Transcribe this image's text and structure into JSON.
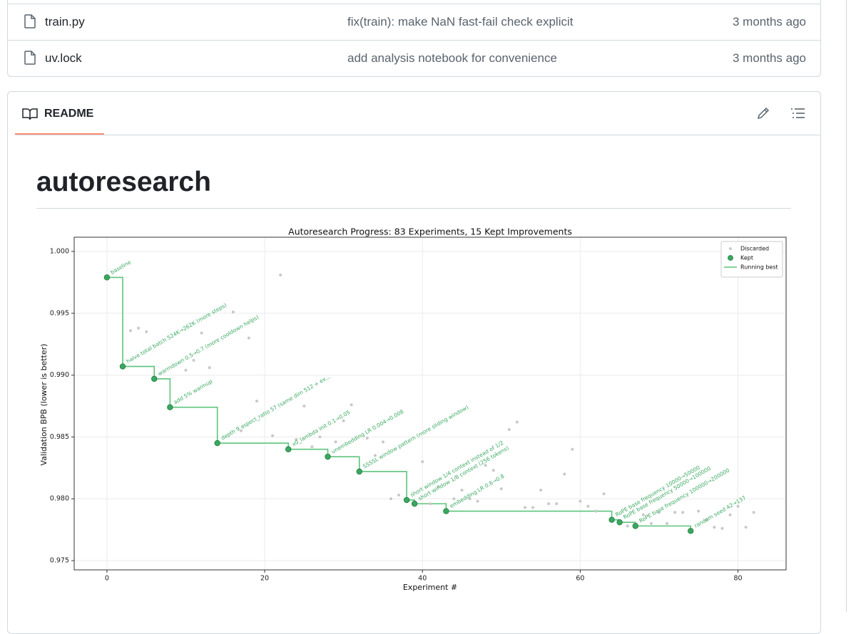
{
  "files": [
    {
      "name": "train.py",
      "message": "fix(train): make NaN fast-fail check explicit",
      "date": "3 months ago"
    },
    {
      "name": "uv.lock",
      "message": "add analysis notebook for convenience",
      "date": "3 months ago"
    }
  ],
  "readme": {
    "tab": "README",
    "heading": "autoresearch"
  },
  "chart_data": {
    "type": "scatter",
    "title": "Autoresearch Progress: 83 Experiments, 15 Kept Improvements",
    "xlabel": "Experiment #",
    "ylabel": "Validation BPB (lower is better)",
    "xlim": [
      -4.15,
      86.1
    ],
    "ylim": [
      0.97425,
      1.00115
    ],
    "xticks": [
      0,
      20,
      40,
      60,
      80
    ],
    "yticks": [
      0.975,
      {
        "value": 0.98,
        "label": "0.980"
      },
      0.985,
      {
        "value": 0.99,
        "label": "0.990"
      },
      0.995,
      {
        "value": 1.0,
        "label": "1.000"
      }
    ],
    "grid": true,
    "legend": "upper right",
    "series": [
      {
        "name": "Discarded",
        "color": "#c8c8c8",
        "x": [
          3,
          4,
          5,
          10,
          11,
          12,
          13,
          16,
          17,
          18,
          19,
          21,
          22,
          24,
          25,
          26,
          27,
          29,
          30,
          31,
          33,
          34,
          35,
          36,
          37,
          40,
          41,
          42,
          44,
          45,
          46,
          47,
          48,
          49,
          50,
          51,
          52,
          53,
          54,
          55,
          56,
          57,
          58,
          59,
          60,
          61,
          62,
          63,
          66,
          68,
          69,
          70,
          71,
          72,
          73,
          75,
          76,
          77,
          78,
          79,
          80,
          81,
          82
        ],
        "values": [
          0.9936,
          0.9938,
          0.9935,
          0.9904,
          0.9912,
          0.9934,
          0.9906,
          0.9951,
          0.9855,
          0.993,
          0.9879,
          0.9851,
          0.9981,
          0.9848,
          0.9875,
          0.9842,
          0.985,
          0.9846,
          0.9863,
          0.9876,
          0.9849,
          0.9835,
          0.9846,
          0.98,
          0.9803,
          0.983,
          0.9796,
          0.981,
          0.98,
          0.9807,
          0.98,
          0.9798,
          0.9827,
          0.9823,
          0.9808,
          0.9856,
          0.9862,
          0.9793,
          0.9793,
          0.9807,
          0.9796,
          0.9796,
          0.982,
          0.984,
          0.9798,
          0.9794,
          0.979,
          0.9804,
          0.9778,
          0.9787,
          0.978,
          0.9789,
          0.978,
          0.9789,
          0.9789,
          0.979,
          0.9783,
          0.9777,
          0.9776,
          0.9787,
          0.9794,
          0.9777,
          0.9789
        ]
      },
      {
        "name": "Kept",
        "color": "#3aa860",
        "x": [
          0,
          2,
          6,
          8,
          14,
          23,
          28,
          32,
          38,
          39,
          43,
          64,
          65,
          67,
          74
        ],
        "values": [
          0.9979,
          0.9907,
          0.9897,
          0.9874,
          0.9845,
          0.984,
          0.9834,
          0.9822,
          0.9799,
          0.9796,
          0.979,
          0.9783,
          0.9781,
          0.9778,
          0.9774
        ],
        "labels": [
          "baseline",
          "halve total batch 524K→262K (more steps)",
          "warmdown 0.5→0.7 (more cooldown helps)",
          "add 5% warmup",
          "depth 9 aspect_ratio 57 (same dim 512 + ex...",
          "x0_lambda init 0.1→0.05",
          "unembedding LR 0.004→0.008",
          "SSSSL window pattern (more sliding window)",
          "short window 1/4 context instead of 1/2",
          "short window 1/8 context (256 tokens)",
          "embedding LR 0.6→0.8",
          "RoPE base frequency 10000→50000",
          "RoPE base frequency 50000→100000",
          "RoPE base frequency 100000→200000",
          "random seed 42→137"
        ]
      },
      {
        "name": "Running best",
        "color": "#5cc47c",
        "style": "step"
      }
    ]
  }
}
